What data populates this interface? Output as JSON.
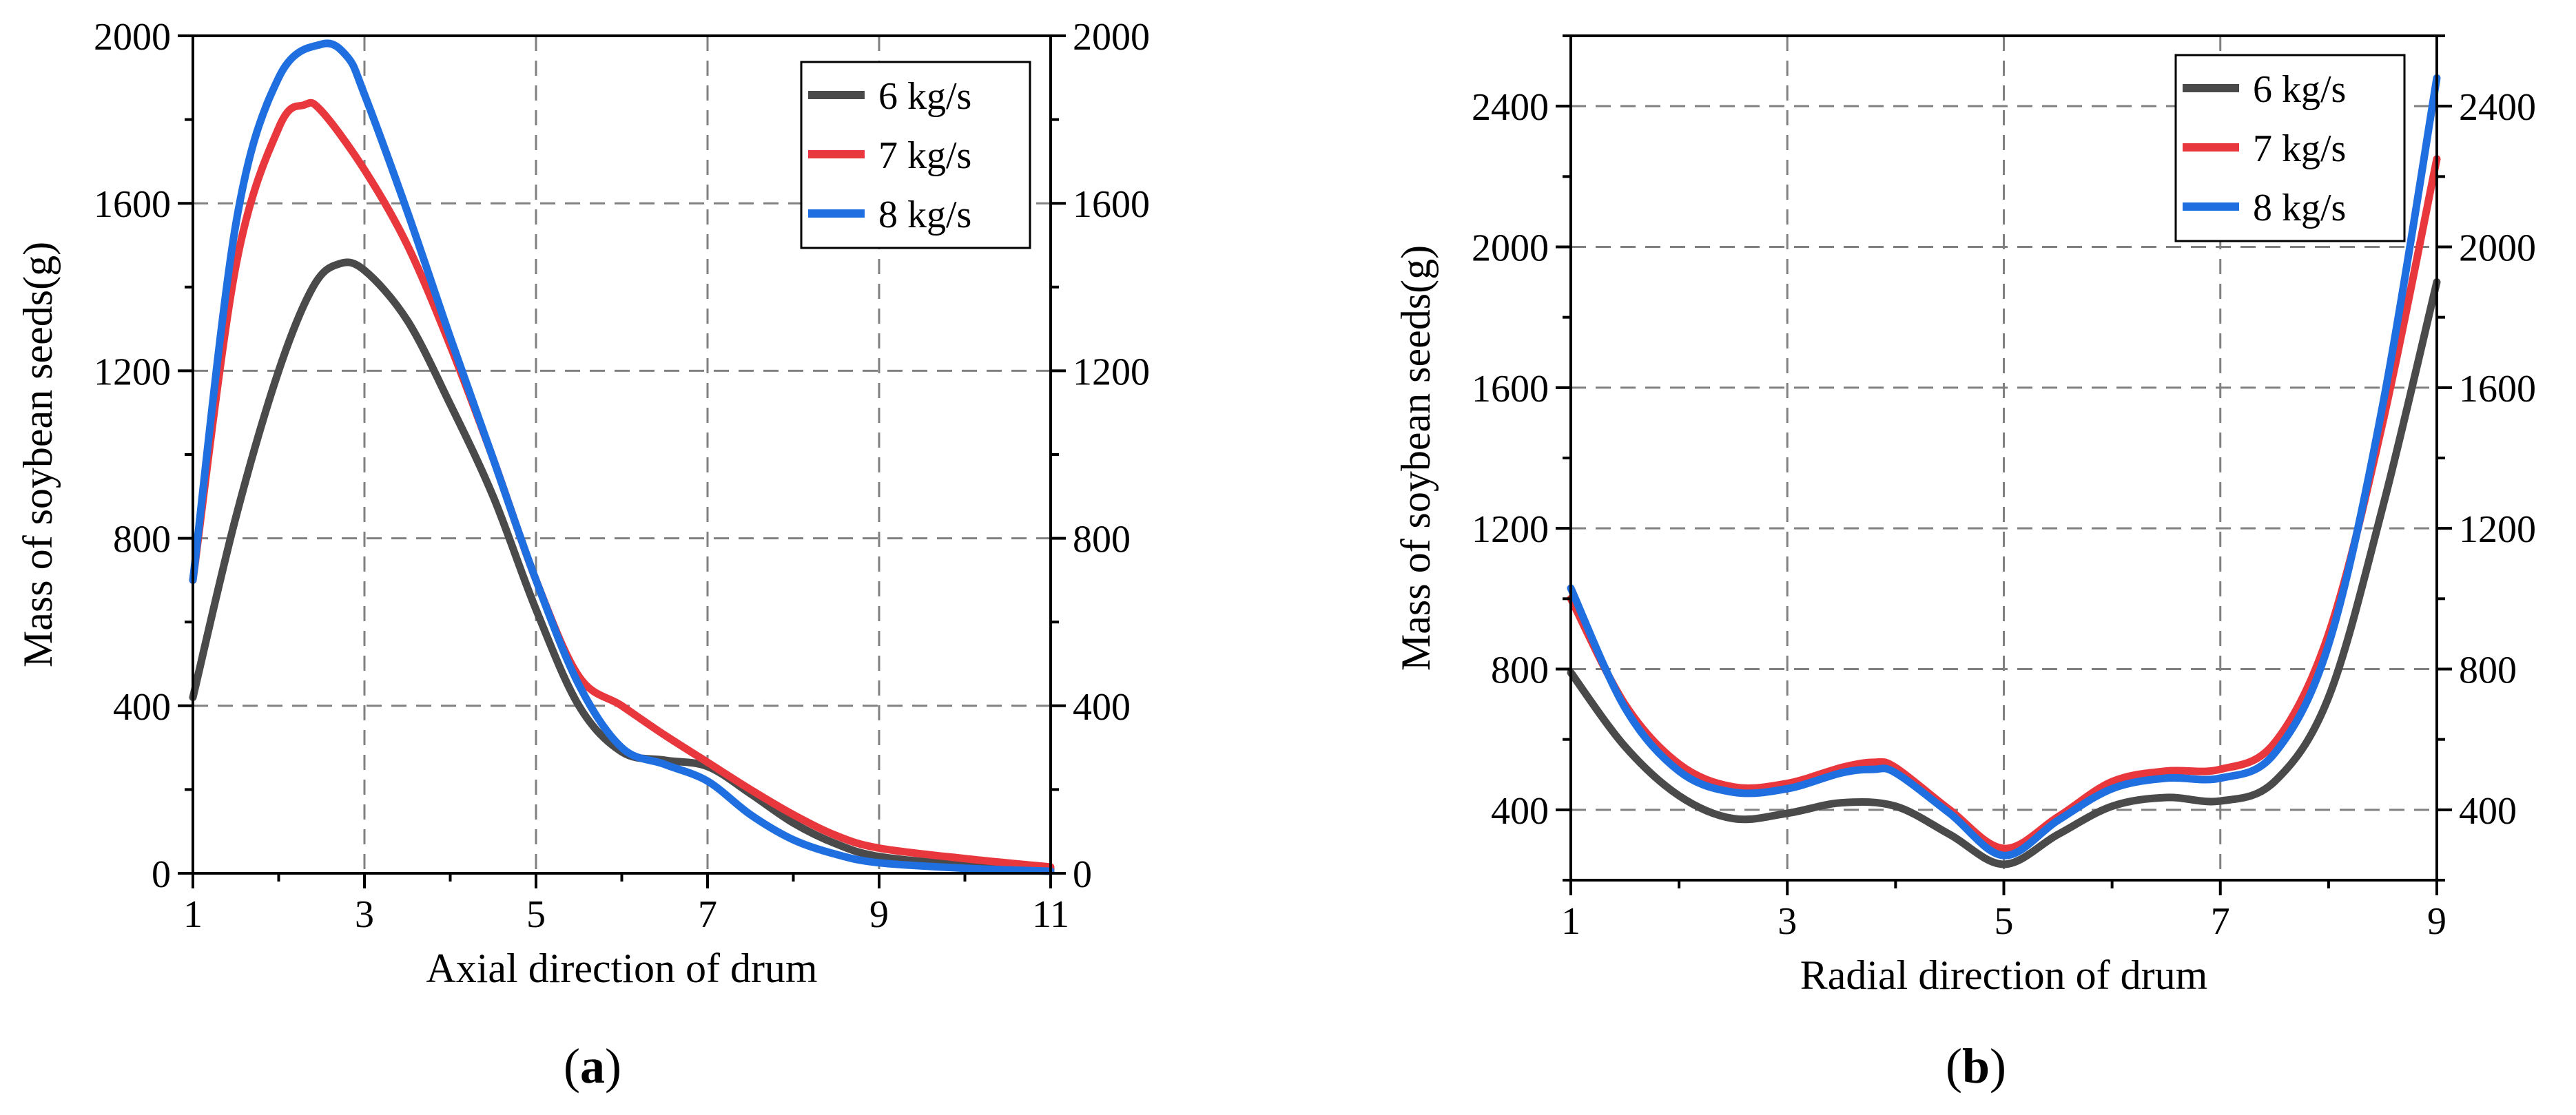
{
  "chart_data": [
    {
      "type": "line",
      "panel_label": "a",
      "xlabel": "Axial direction of drum",
      "ylabel": "Mass of soybean seeds(g)",
      "xlim": [
        1,
        11
      ],
      "ylim": [
        0,
        2000
      ],
      "xticks": [
        1,
        3,
        5,
        7,
        9,
        11
      ],
      "yticks": [
        0,
        400,
        800,
        1200,
        1600,
        2000
      ],
      "grid": true,
      "right_axis_mirror": true,
      "legend_position": "top-right",
      "series": [
        {
          "name": "6 kg/s",
          "color": "#4a4a4a",
          "points": [
            [
              1,
              420
            ],
            [
              1.5,
              850
            ],
            [
              2,
              1200
            ],
            [
              2.4,
              1400
            ],
            [
              2.7,
              1455
            ],
            [
              3,
              1440
            ],
            [
              3.5,
              1320
            ],
            [
              4,
              1120
            ],
            [
              4.5,
              900
            ],
            [
              5,
              630
            ],
            [
              5.5,
              400
            ],
            [
              6,
              290
            ],
            [
              6.5,
              270
            ],
            [
              7,
              255
            ],
            [
              7.5,
              190
            ],
            [
              8,
              120
            ],
            [
              8.5,
              70
            ],
            [
              9,
              40
            ],
            [
              10,
              20
            ],
            [
              11,
              10
            ]
          ]
        },
        {
          "name": "7 kg/s",
          "color": "#e8383d",
          "points": [
            [
              1,
              700
            ],
            [
              1.5,
              1450
            ],
            [
              2,
              1780
            ],
            [
              2.3,
              1835
            ],
            [
              2.5,
              1820
            ],
            [
              3,
              1680
            ],
            [
              3.5,
              1500
            ],
            [
              4,
              1260
            ],
            [
              4.5,
              990
            ],
            [
              5,
              700
            ],
            [
              5.5,
              470
            ],
            [
              6,
              400
            ],
            [
              6.5,
              330
            ],
            [
              7,
              265
            ],
            [
              7.5,
              200
            ],
            [
              8,
              140
            ],
            [
              8.5,
              90
            ],
            [
              9,
              60
            ],
            [
              10,
              35
            ],
            [
              11,
              15
            ]
          ]
        },
        {
          "name": "8 kg/s",
          "color": "#1f6fe0",
          "points": [
            [
              1,
              700
            ],
            [
              1.5,
              1550
            ],
            [
              2,
              1900
            ],
            [
              2.5,
              1980
            ],
            [
              2.8,
              1950
            ],
            [
              3,
              1860
            ],
            [
              3.5,
              1580
            ],
            [
              4,
              1280
            ],
            [
              4.5,
              990
            ],
            [
              5,
              700
            ],
            [
              5.5,
              450
            ],
            [
              6,
              300
            ],
            [
              6.5,
              260
            ],
            [
              7,
              220
            ],
            [
              7.5,
              140
            ],
            [
              8,
              80
            ],
            [
              8.5,
              45
            ],
            [
              9,
              25
            ],
            [
              10,
              12
            ],
            [
              11,
              5
            ]
          ]
        }
      ]
    },
    {
      "type": "line",
      "panel_label": "b",
      "xlabel": "Radial direction of drum",
      "ylabel": "Mass of soybean seeds(g)",
      "xlim": [
        1,
        9
      ],
      "ylim": [
        200,
        2600
      ],
      "xticks": [
        1,
        3,
        5,
        7,
        9
      ],
      "yticks": [
        400,
        800,
        1200,
        1600,
        2000,
        2400
      ],
      "grid": true,
      "right_axis_mirror": true,
      "legend_position": "top-right",
      "series": [
        {
          "name": "6 kg/s",
          "color": "#4a4a4a",
          "points": [
            [
              1,
              790
            ],
            [
              1.5,
              580
            ],
            [
              2,
              440
            ],
            [
              2.5,
              375
            ],
            [
              3,
              390
            ],
            [
              3.5,
              420
            ],
            [
              4,
              410
            ],
            [
              4.5,
              330
            ],
            [
              5,
              245
            ],
            [
              5.5,
              330
            ],
            [
              6,
              410
            ],
            [
              6.5,
              435
            ],
            [
              7,
              425
            ],
            [
              7.5,
              480
            ],
            [
              8,
              720
            ],
            [
              8.5,
              1260
            ],
            [
              9,
              1900
            ]
          ]
        },
        {
          "name": "7 kg/s",
          "color": "#e8383d",
          "points": [
            [
              1,
              1000
            ],
            [
              1.5,
              700
            ],
            [
              2,
              530
            ],
            [
              2.5,
              465
            ],
            [
              3,
              475
            ],
            [
              3.5,
              520
            ],
            [
              3.8,
              535
            ],
            [
              4,
              520
            ],
            [
              4.5,
              400
            ],
            [
              5,
              290
            ],
            [
              5.5,
              380
            ],
            [
              6,
              480
            ],
            [
              6.5,
              510
            ],
            [
              7,
              515
            ],
            [
              7.5,
              590
            ],
            [
              8,
              900
            ],
            [
              8.5,
              1500
            ],
            [
              9,
              2250
            ]
          ]
        },
        {
          "name": "8 kg/s",
          "color": "#1f6fe0",
          "points": [
            [
              1,
              1030
            ],
            [
              1.5,
              690
            ],
            [
              2,
              510
            ],
            [
              2.5,
              450
            ],
            [
              3,
              460
            ],
            [
              3.5,
              505
            ],
            [
              3.8,
              515
            ],
            [
              4,
              505
            ],
            [
              4.5,
              390
            ],
            [
              5,
              270
            ],
            [
              5.5,
              370
            ],
            [
              6,
              460
            ],
            [
              6.5,
              490
            ],
            [
              7,
              490
            ],
            [
              7.5,
              560
            ],
            [
              8,
              870
            ],
            [
              8.5,
              1550
            ],
            [
              9,
              2480
            ]
          ]
        }
      ]
    }
  ]
}
